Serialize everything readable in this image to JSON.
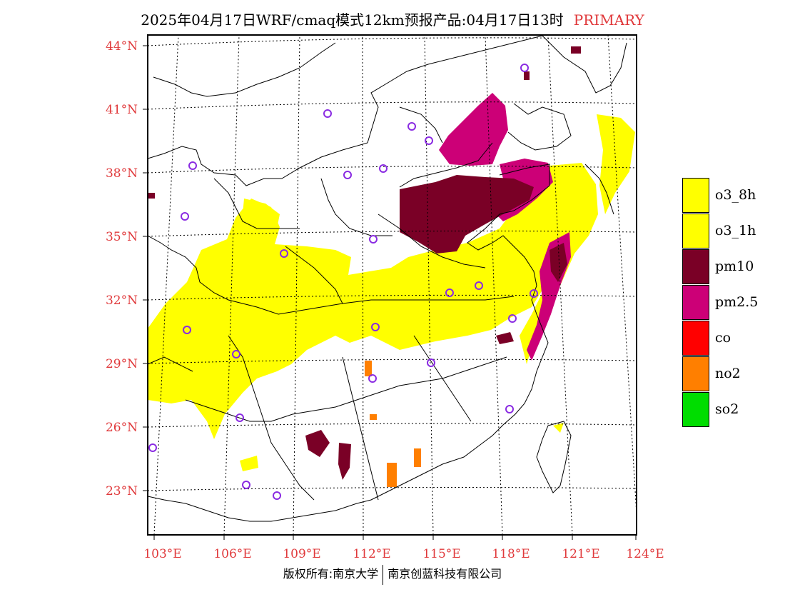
{
  "title": {
    "main": "2025年04月17日WRF/cmaq模式12km预报产品:04月17日13时",
    "tag": "PRIMARY"
  },
  "map": {
    "lat_labels": [
      "44°N",
      "41°N",
      "38°N",
      "35°N",
      "32°N",
      "29°N",
      "26°N",
      "23°N"
    ],
    "lon_labels": [
      "103°E",
      "106°E",
      "109°E",
      "112°E",
      "115°E",
      "118°E",
      "121°E",
      "124°E"
    ],
    "lon_range": [
      103,
      124
    ],
    "lat_range": [
      21,
      44.5
    ],
    "city_marker_color": "#8a2be2"
  },
  "legend": [
    {
      "label": "o3_8h",
      "color": "#ffff00"
    },
    {
      "label": "o3_1h",
      "color": "#ffff00"
    },
    {
      "label": "pm10",
      "color": "#7a0026"
    },
    {
      "label": "pm2.5",
      "color": "#cc0077"
    },
    {
      "label": "co",
      "color": "#ff0000"
    },
    {
      "label": "no2",
      "color": "#ff7f00"
    },
    {
      "label": "so2",
      "color": "#00dd00"
    }
  ],
  "footer": {
    "left": "版权所有:南京大学",
    "right": "南京创蓝科技有限公司"
  }
}
